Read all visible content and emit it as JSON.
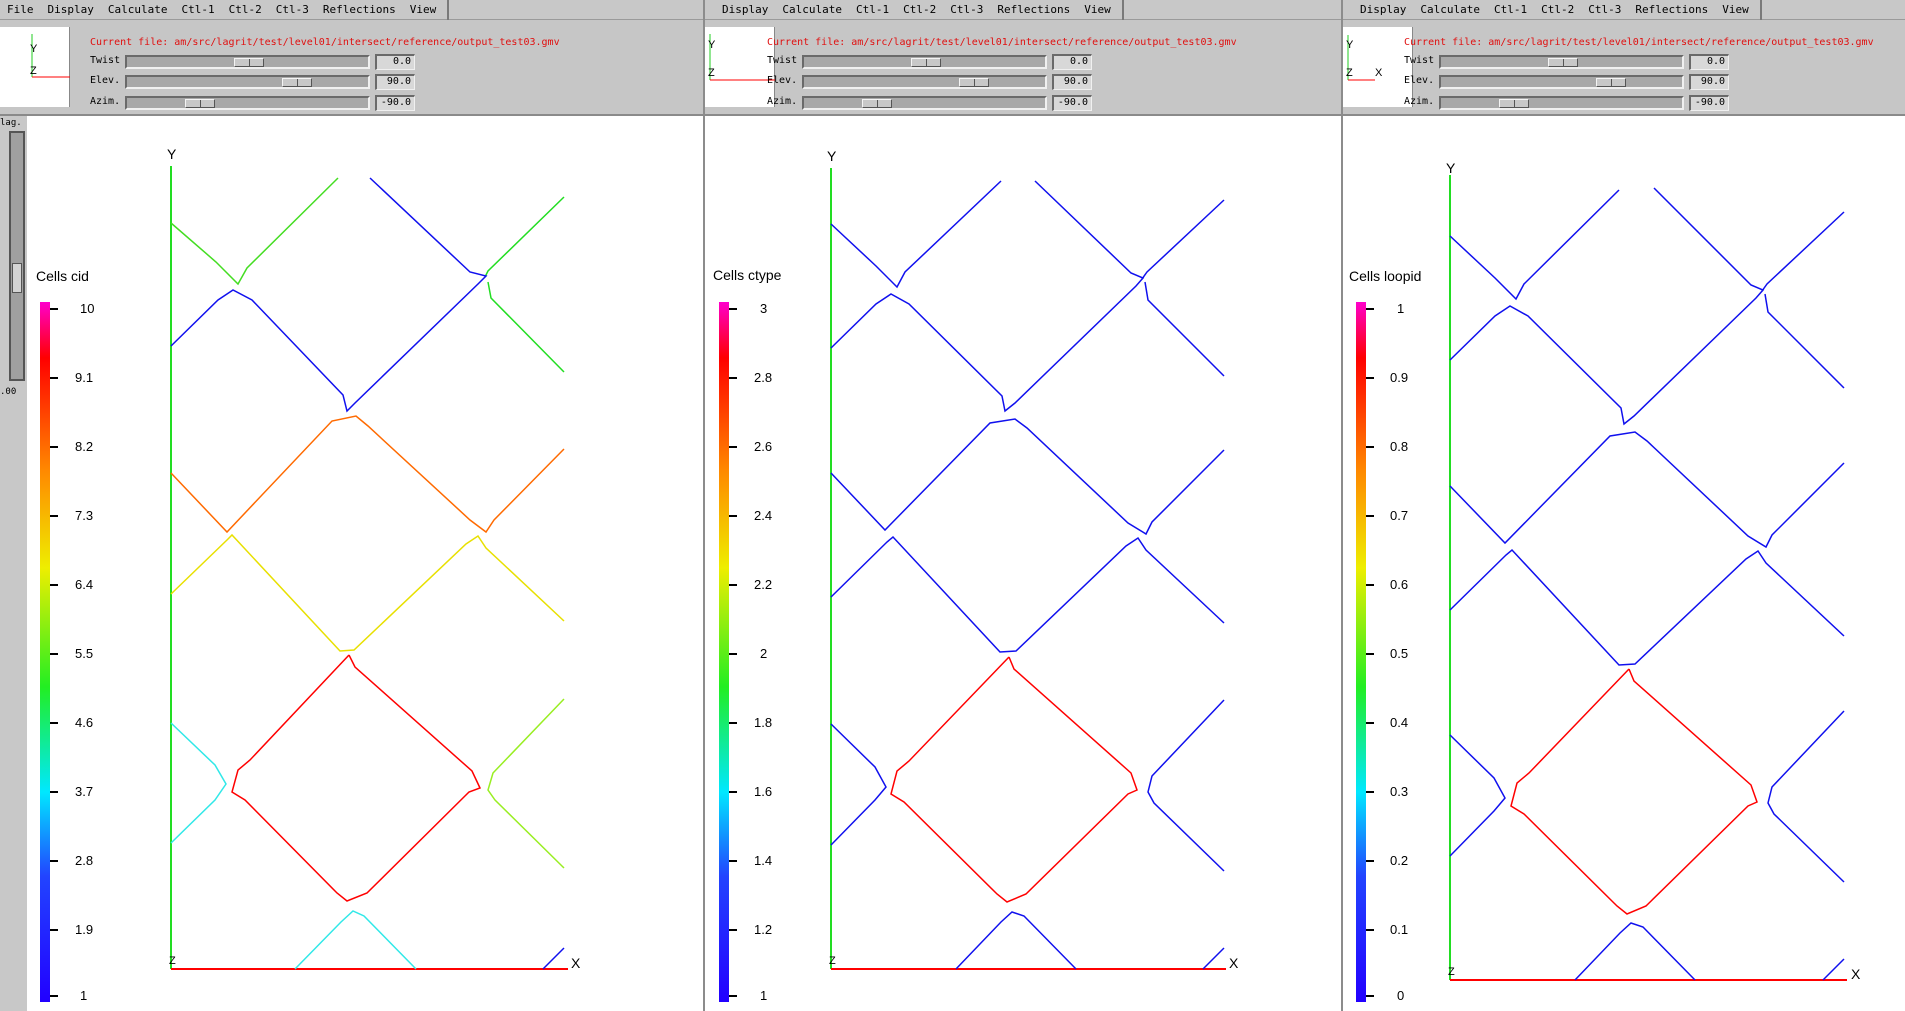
{
  "panels": [
    {
      "menu": [
        "File",
        "Display",
        "Calculate",
        "Ctl-1",
        "Ctl-2",
        "Ctl-3",
        "Reflections",
        "View"
      ],
      "current_file": "Current file: am/src/lagrit/test/level01/intersect/reference/output_test03.gmv",
      "sliders": [
        {
          "label": "Twist",
          "value": "0.0",
          "level": 0.5
        },
        {
          "label": "Elev.",
          "value": "90.0",
          "level": 0.75
        },
        {
          "label": "Azim.",
          "value": "-90.0",
          "level": 0.25
        }
      ],
      "side_labels": [
        "lag.",
        ".00"
      ],
      "legend": {
        "title": "Cells cid",
        "ticks": [
          "10",
          "9.1",
          "8.2",
          "7.3",
          "6.4",
          "5.5",
          "4.6",
          "3.7",
          "2.8",
          "1.9",
          "1"
        ]
      },
      "axes": {
        "y": "Y",
        "x": "X",
        "z": "Z"
      }
    },
    {
      "menu": [
        "Display",
        "Calculate",
        "Ctl-1",
        "Ctl-2",
        "Ctl-3",
        "Reflections",
        "View"
      ],
      "current_file": "Current file: am/src/lagrit/test/level01/intersect/reference/output_test03.gmv",
      "sliders": [
        {
          "label": "Twist",
          "value": "0.0",
          "level": 0.5
        },
        {
          "label": "Elev.",
          "value": "90.0",
          "level": 0.75
        },
        {
          "label": "Azim.",
          "value": "-90.0",
          "level": 0.25
        }
      ],
      "legend": {
        "title": "Cells ctype",
        "ticks": [
          "3",
          "2.8",
          "2.6",
          "2.4",
          "2.2",
          "2",
          "1.8",
          "1.6",
          "1.4",
          "1.2",
          "1"
        ]
      },
      "axes": {
        "y": "Y",
        "x": "X",
        "z": "Z"
      }
    },
    {
      "menu": [
        "Display",
        "Calculate",
        "Ctl-1",
        "Ctl-2",
        "Ctl-3",
        "Reflections",
        "View"
      ],
      "current_file": "Current file: am/src/lagrit/test/level01/intersect/reference/output_test03.gmv",
      "sliders": [
        {
          "label": "Twist",
          "value": "0.0",
          "level": 0.5
        },
        {
          "label": "Elev.",
          "value": "90.0",
          "level": 0.75
        },
        {
          "label": "Azim.",
          "value": "-90.0",
          "level": 0.25
        }
      ],
      "legend": {
        "title": "Cells loopid",
        "ticks": [
          "1",
          "0.9",
          "0.8",
          "0.7",
          "0.6",
          "0.5",
          "0.4",
          "0.3",
          "0.2",
          "0.1",
          "0"
        ]
      },
      "axes": {
        "y": "Y",
        "x": "X",
        "z": "Z"
      }
    }
  ],
  "colors": {
    "red": "#ff0000",
    "blue": "#1010ee",
    "green": "#22dd22",
    "orange": "#ff6a00",
    "yellow": "#e8e000",
    "cyan": "#30e8e8",
    "lime": "#99ee22",
    "toolbar_bg": "#c6c6c6",
    "file_text": "#e01010"
  }
}
